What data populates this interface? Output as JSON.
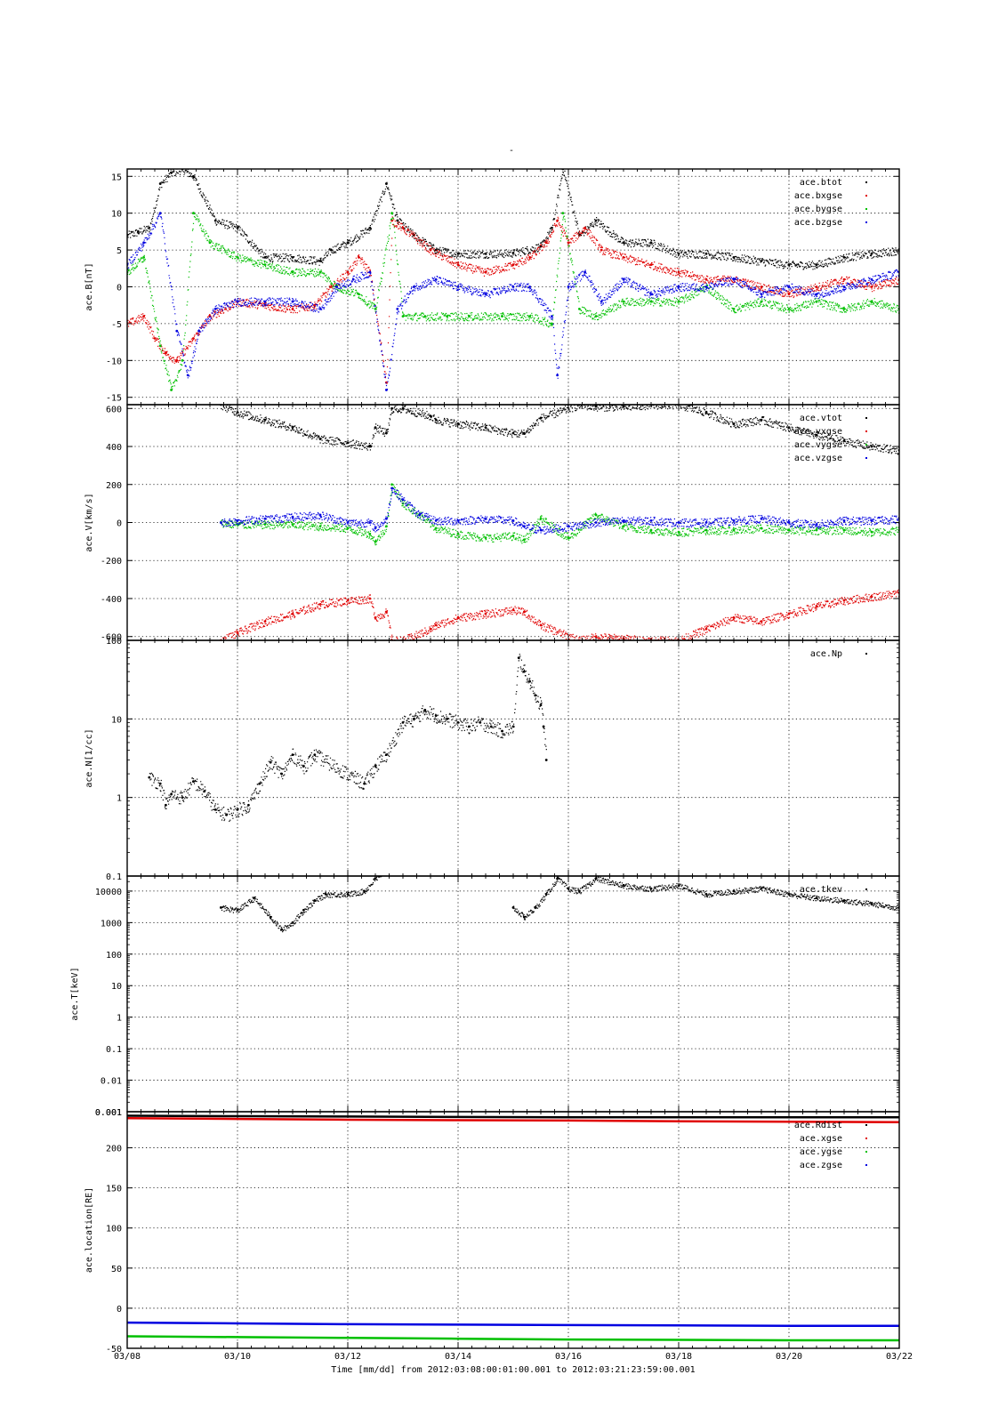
{
  "page_title": "-",
  "colors": {
    "black": "#000000",
    "red": "#e00000",
    "green": "#00c000",
    "blue": "#0000e0"
  },
  "x_axis": {
    "tick_labels": [
      "03/08",
      "03/10",
      "03/12",
      "03/14",
      "03/16",
      "03/18",
      "03/20",
      "03/22"
    ],
    "tick_days": [
      0,
      2,
      4,
      6,
      8,
      10,
      12,
      14
    ],
    "range_days": [
      0,
      14
    ],
    "caption": "Time [mm/dd]  from 2012:03:08:00:01:00.001  to  2012:03:21:23:59:00.001"
  },
  "chart_data": [
    {
      "type": "scatter",
      "ylabel": "ace.B[nT]",
      "ylim": [
        -16,
        16
      ],
      "yscale": "linear",
      "yticks": [
        15,
        10,
        5,
        0,
        -5,
        -10,
        -15
      ],
      "ytick_labels": [
        "15",
        "10",
        "5",
        "0",
        "-5",
        "-10",
        "-15"
      ],
      "legend_position": "top-right",
      "series": [
        {
          "name": "ace.btot",
          "color": "#000000",
          "x": [
            0,
            0.2,
            0.4,
            0.6,
            0.8,
            1.0,
            1.2,
            1.6,
            2.0,
            2.5,
            3.0,
            3.5,
            3.7,
            4.0,
            4.4,
            4.7,
            4.9,
            5.2,
            5.6,
            6.0,
            6.5,
            7.0,
            7.5,
            7.7,
            7.9,
            8.2,
            8.5,
            9.0,
            9.5,
            10.0,
            10.5,
            11.0,
            11.5,
            12.0,
            12.5,
            13.0,
            13.5,
            14.0
          ],
          "y": [
            7,
            7.5,
            8,
            14,
            15.5,
            16,
            15,
            9,
            8,
            4,
            4,
            3.5,
            5,
            6,
            8,
            14,
            9,
            7,
            5,
            4.5,
            4.5,
            4.6,
            5.5,
            8,
            16,
            7,
            9,
            6,
            6,
            4.5,
            4.5,
            4,
            3.5,
            3,
            3,
            4,
            4.5,
            5
          ]
        },
        {
          "name": "ace.bxgse",
          "color": "#e00000",
          "x": [
            0,
            0.3,
            0.5,
            0.7,
            0.9,
            1.2,
            1.5,
            2.0,
            2.5,
            3.0,
            3.4,
            3.7,
            4.0,
            4.2,
            4.4,
            4.7,
            4.8,
            5.0,
            5.5,
            6.0,
            6.5,
            7.0,
            7.3,
            7.6,
            7.8,
            8.0,
            8.3,
            8.6,
            9.0,
            9.5,
            10.0,
            10.5,
            11.0,
            11.5,
            12.0,
            12.5,
            13.0,
            13.5,
            14.0
          ],
          "y": [
            -5,
            -4,
            -7,
            -9,
            -10,
            -7,
            -4,
            -2,
            -2.5,
            -3,
            -2.5,
            0,
            2,
            4,
            2,
            -13,
            9,
            8,
            5,
            3,
            2,
            3,
            4,
            6,
            9,
            6,
            8,
            5,
            4,
            3,
            2,
            1,
            1,
            0,
            -1,
            0,
            1,
            0,
            1
          ]
        },
        {
          "name": "ace.bygse",
          "color": "#00c000",
          "x": [
            0,
            0.3,
            0.6,
            0.8,
            1.0,
            1.2,
            1.5,
            2.0,
            2.5,
            3.0,
            3.5,
            3.8,
            4.2,
            4.5,
            4.8,
            5.0,
            5.4,
            5.8,
            6.2,
            6.8,
            7.3,
            7.7,
            7.9,
            8.2,
            8.5,
            9.0,
            9.5,
            10.0,
            10.5,
            11.0,
            11.5,
            12.0,
            12.5,
            13.0,
            13.5,
            14.0
          ],
          "y": [
            2,
            4,
            -8,
            -14,
            -10,
            10,
            6,
            4,
            3,
            2,
            2,
            0,
            -1,
            -3,
            10,
            -4,
            -4,
            -4,
            -4,
            -4,
            -4,
            -5,
            10,
            -3,
            -4,
            -2,
            -2,
            -2,
            0,
            -3,
            -2,
            -3,
            -2,
            -3,
            -2,
            -3
          ]
        },
        {
          "name": "ace.bzgse",
          "color": "#0000e0",
          "x": [
            0,
            0.3,
            0.6,
            0.9,
            1.1,
            1.3,
            1.6,
            2.0,
            2.5,
            3.0,
            3.5,
            3.8,
            4.1,
            4.4,
            4.7,
            4.9,
            5.2,
            5.6,
            6.0,
            6.5,
            7.0,
            7.3,
            7.7,
            7.8,
            8.0,
            8.3,
            8.6,
            9.0,
            9.5,
            10.0,
            10.5,
            11.0,
            11.5,
            12.0,
            12.5,
            13.0,
            13.5,
            14.0
          ],
          "y": [
            3,
            6,
            10,
            -6,
            -12,
            -6,
            -3,
            -2,
            -2,
            -2,
            -3,
            0,
            1,
            2,
            -14,
            -3,
            0,
            1,
            0,
            -1,
            0,
            0,
            -4,
            -12,
            0,
            2,
            -2,
            1,
            -1,
            0,
            0,
            1,
            -1,
            0,
            -1,
            0,
            1,
            2
          ]
        }
      ]
    },
    {
      "type": "scatter",
      "ylabel": "ace.V[km/s]",
      "ylim": [
        -620,
        620
      ],
      "yscale": "linear",
      "yticks": [
        600,
        400,
        200,
        0,
        -200,
        -400,
        -600
      ],
      "ytick_labels": [
        "600",
        "400",
        "200",
        "0",
        "-200",
        "-400",
        "-600"
      ],
      "legend_position": "top-right",
      "series": [
        {
          "name": "ace.vtot",
          "color": "#000000",
          "x": [
            1.7,
            2.0,
            2.5,
            3.0,
            3.5,
            4.0,
            4.4,
            4.5,
            4.7,
            4.8,
            5.0,
            5.5,
            5.6,
            6.0,
            6.5,
            7.0,
            7.2,
            7.5,
            8.2,
            8.5,
            9.0,
            9.5,
            10.0,
            10.5,
            11.0,
            11.5,
            12.0,
            12.5,
            13.0,
            13.5,
            14.0
          ],
          "y": [
            620,
            580,
            540,
            500,
            440,
            420,
            400,
            500,
            470,
            600,
            600,
            560,
            540,
            520,
            500,
            470,
            470,
            550,
            620,
            610,
            610,
            620,
            620,
            580,
            520,
            540,
            500,
            460,
            430,
            400,
            380
          ]
        },
        {
          "name": "ace.vxgse",
          "color": "#e00000",
          "x": [
            1.7,
            2.0,
            2.5,
            3.0,
            3.5,
            4.0,
            4.4,
            4.5,
            4.7,
            4.8,
            5.0,
            5.5,
            5.6,
            6.0,
            6.5,
            7.0,
            7.2,
            7.5,
            8.2,
            8.5,
            9.0,
            9.5,
            10.0,
            10.5,
            11.0,
            11.5,
            12.0,
            12.5,
            13.0,
            13.5,
            14.0
          ],
          "y": [
            -620,
            -580,
            -520,
            -480,
            -430,
            -410,
            -400,
            -500,
            -470,
            -620,
            -620,
            -560,
            -540,
            -500,
            -480,
            -460,
            -470,
            -540,
            -620,
            -600,
            -610,
            -620,
            -620,
            -560,
            -500,
            -520,
            -480,
            -440,
            -410,
            -390,
            -370
          ]
        },
        {
          "name": "ace.vygse",
          "color": "#00c000",
          "x": [
            1.7,
            2.0,
            2.5,
            3.0,
            3.5,
            4.0,
            4.4,
            4.5,
            4.7,
            4.8,
            5.0,
            5.3,
            5.6,
            6.0,
            6.5,
            7.0,
            7.2,
            7.5,
            8.0,
            8.5,
            9.0,
            9.5,
            10.0,
            10.5,
            11.0,
            11.5,
            12.0,
            12.5,
            13.0,
            13.5,
            14.0
          ],
          "y": [
            0,
            -10,
            -10,
            -10,
            -20,
            -30,
            -60,
            -100,
            -20,
            200,
            100,
            40,
            -30,
            -60,
            -80,
            -70,
            -90,
            20,
            -80,
            40,
            -20,
            -40,
            -50,
            -40,
            -40,
            -30,
            -40,
            -40,
            -40,
            -50,
            -40
          ]
        },
        {
          "name": "ace.vzgse",
          "color": "#0000e0",
          "x": [
            1.7,
            2.0,
            2.5,
            3.0,
            3.5,
            4.0,
            4.4,
            4.5,
            4.7,
            4.8,
            5.0,
            5.3,
            5.6,
            6.0,
            6.5,
            7.0,
            7.2,
            7.5,
            8.0,
            8.5,
            9.0,
            9.5,
            10.0,
            10.5,
            11.0,
            11.5,
            12.0,
            12.5,
            13.0,
            13.5,
            14.0
          ],
          "y": [
            0,
            10,
            20,
            30,
            40,
            0,
            0,
            -30,
            20,
            180,
            120,
            40,
            10,
            10,
            20,
            10,
            -20,
            -40,
            -20,
            0,
            10,
            10,
            0,
            0,
            10,
            20,
            0,
            -10,
            10,
            10,
            20
          ]
        }
      ]
    },
    {
      "type": "scatter",
      "ylabel": "ace.N[1/cc]",
      "ylim": [
        0.1,
        100
      ],
      "yscale": "log",
      "yticks": [
        100,
        10,
        1,
        0.1
      ],
      "ytick_labels": [
        "100",
        "10",
        "1",
        "0.1"
      ],
      "legend_position": "top-right",
      "series": [
        {
          "name": "ace.Np",
          "color": "#000000",
          "x": [
            0.4,
            0.6,
            0.7,
            0.8,
            1.0,
            1.2,
            1.4,
            1.6,
            1.8,
            2.0,
            2.2,
            2.4,
            2.6,
            2.8,
            3.0,
            3.2,
            3.4,
            4.3,
            4.5,
            4.7,
            5.0,
            5.2,
            5.4,
            5.6,
            5.8,
            6.0,
            6.2,
            6.4,
            6.6,
            6.8,
            7.0,
            7.1,
            7.2,
            7.3,
            7.4,
            7.5,
            7.55,
            7.6
          ],
          "y": [
            1.8,
            1.5,
            0.8,
            1.1,
            1.0,
            1.6,
            1.2,
            0.7,
            0.6,
            0.7,
            0.8,
            1.5,
            2.8,
            2.0,
            3.5,
            2.5,
            3.5,
            1.5,
            2.5,
            3.5,
            9,
            10,
            13,
            11,
            10,
            9,
            8,
            9,
            8,
            7,
            8,
            60,
            40,
            30,
            20,
            15,
            8,
            3
          ]
        }
      ]
    },
    {
      "type": "scatter",
      "ylabel": "ace.T[keV]",
      "ylim": [
        0.001,
        30000
      ],
      "yscale": "log",
      "yticks": [
        10000,
        1000,
        100,
        10,
        1,
        0.1,
        0.01,
        0.001
      ],
      "ytick_labels": [
        "10000",
        "1000",
        "100",
        "10",
        "1",
        "0.1",
        "0.01",
        "0.001"
      ],
      "legend_position": "top-right",
      "series": [
        {
          "name": "ace.tkev",
          "color": "#000000",
          "x": [
            1.7,
            2.0,
            2.3,
            2.6,
            2.8,
            3.0,
            3.2,
            3.4,
            3.6,
            4.0,
            4.3,
            4.5,
            4.6,
            7.0,
            7.2,
            7.4,
            7.6,
            7.8,
            8.0,
            8.2,
            8.5,
            9.0,
            9.5,
            10.0,
            10.5,
            11.0,
            11.5,
            12.0,
            12.5,
            13.0,
            13.5,
            14.0
          ],
          "y": [
            3000,
            2500,
            6000,
            1500,
            600,
            1000,
            2500,
            5000,
            8000,
            8000,
            10000,
            25000,
            30000,
            3000,
            1500,
            3000,
            8000,
            25000,
            12000,
            10000,
            25000,
            15000,
            12000,
            15000,
            8000,
            10000,
            12000,
            8000,
            6000,
            5000,
            4000,
            3000
          ]
        }
      ]
    },
    {
      "type": "line",
      "ylabel": "ace.location[RE]",
      "ylim": [
        -50,
        245
      ],
      "yscale": "linear",
      "yticks": [
        200,
        150,
        100,
        50,
        0,
        -50
      ],
      "ytick_labels": [
        "200",
        "150",
        "100",
        "50",
        "0",
        "-50"
      ],
      "top_label": "0.001",
      "legend_position": "top-right",
      "series": [
        {
          "name": "ace.Rdist",
          "color": "#000000",
          "x": [
            0,
            2,
            4,
            6,
            8,
            10,
            12,
            14
          ],
          "y": [
            240,
            239.5,
            239,
            238.5,
            238,
            238,
            238,
            238
          ]
        },
        {
          "name": "ace.xgse",
          "color": "#e00000",
          "x": [
            0,
            2,
            4,
            6,
            8,
            10,
            12,
            14
          ],
          "y": [
            237,
            236,
            235,
            234.5,
            234,
            233,
            232.5,
            232
          ]
        },
        {
          "name": "ace.ygse",
          "color": "#00c000",
          "x": [
            0,
            2,
            4,
            6,
            8,
            10,
            12,
            14
          ],
          "y": [
            -35,
            -36,
            -37,
            -38,
            -39,
            -39.5,
            -40,
            -40
          ]
        },
        {
          "name": "ace.zgse",
          "color": "#0000e0",
          "x": [
            0,
            2,
            4,
            6,
            8,
            10,
            12,
            14
          ],
          "y": [
            -18,
            -19,
            -20,
            -20.5,
            -21,
            -21.5,
            -22,
            -22
          ]
        }
      ]
    }
  ]
}
